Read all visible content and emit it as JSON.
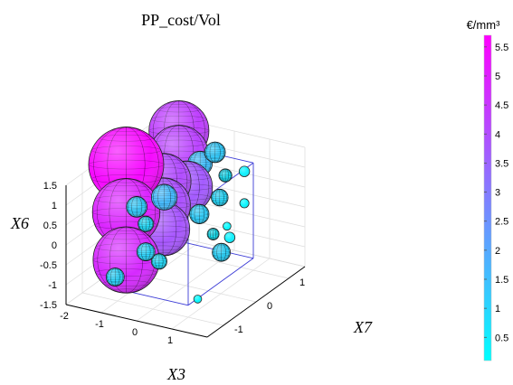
{
  "chart_data": {
    "type": "scatter",
    "subtype": "3d-bubble",
    "title": "PP_cost/Vol",
    "xlabel": "X3",
    "ylabel": "X7",
    "zlabel": "X6",
    "xlim": [
      -2,
      2
    ],
    "ylim": [
      -1.5,
      1.5
    ],
    "zlim": [
      -1.5,
      1.5
    ],
    "xticks": [
      "-2",
      "-1",
      "0",
      "1"
    ],
    "yticks": [
      "-1",
      "0",
      "1"
    ],
    "zticks": [
      "-1.5",
      "-1",
      "-0.5",
      "0",
      "0.5",
      "1",
      "1.5"
    ],
    "grid": true,
    "colorbar": {
      "label": "€/mm³",
      "min": 0.1,
      "max": 5.7,
      "ticks": [
        "0.5",
        "1",
        "1.5",
        "2",
        "2.5",
        "3",
        "3.5",
        "4",
        "4.5",
        "5",
        "5.5"
      ],
      "colors": [
        "#00ffff",
        "#ff00ff"
      ]
    },
    "points": [
      {
        "x": -1.68,
        "y": 0,
        "z": 1.2,
        "value": 5.5
      },
      {
        "x": -1.68,
        "y": 0,
        "z": 0,
        "value": 4.9
      },
      {
        "x": -1.68,
        "y": 0,
        "z": -1.2,
        "value": 4.8
      },
      {
        "x": -1.2,
        "y": 1.1,
        "z": 1.5,
        "value": 4.3
      },
      {
        "x": -1.2,
        "y": 1.1,
        "z": 0.9,
        "value": 4.2
      },
      {
        "x": -1.1,
        "y": 0.5,
        "z": 0.6,
        "value": 4.0
      },
      {
        "x": -1.1,
        "y": 0.5,
        "z": 0,
        "value": 3.9
      },
      {
        "x": -1.1,
        "y": 0.5,
        "z": -0.6,
        "value": 3.8
      },
      {
        "x": -0.9,
        "y": 1,
        "z": 0.2,
        "value": 3.7
      },
      {
        "x": -0.6,
        "y": 0,
        "z": 0.6,
        "value": 1.6
      },
      {
        "x": -0.6,
        "y": 1.1,
        "z": 0.8,
        "value": 1.5
      },
      {
        "x": -0.55,
        "y": -0.9,
        "z": 0.9,
        "value": 1.2
      },
      {
        "x": 0.1,
        "y": 0.8,
        "z": 1.4,
        "value": 1.2
      },
      {
        "x": 0.3,
        "y": 0.1,
        "z": 0.3,
        "value": 1.1
      },
      {
        "x": -0.2,
        "y": -1,
        "z": -0.1,
        "value": 1.0
      },
      {
        "x": -0.7,
        "y": -1.4,
        "z": -0.6,
        "value": 1.0
      },
      {
        "x": 1.2,
        "y": -0.2,
        "z": -0.3,
        "value": 1.0
      },
      {
        "x": 0.6,
        "y": 0.4,
        "z": 0.6,
        "value": 0.9
      },
      {
        "x": -0.2,
        "y": -1,
        "z": 0.6,
        "value": 0.8
      },
      {
        "x": -0.1,
        "y": -0.7,
        "z": -0.5,
        "value": 0.8
      },
      {
        "x": 0.3,
        "y": 0.9,
        "z": 0.8,
        "value": 0.6
      },
      {
        "x": 0.6,
        "y": 0.2,
        "z": -0.2,
        "value": 0.5
      },
      {
        "x": 0.7,
        "y": 0.6,
        "z": -0.5,
        "value": 0.4
      },
      {
        "x": 1.3,
        "y": 0.4,
        "z": 1.4,
        "value": 0.4
      },
      {
        "x": 1.3,
        "y": 0.4,
        "z": 0.6,
        "value": 0.3
      },
      {
        "x": 0.9,
        "y": 0.3,
        "z": 0.0,
        "value": 0.2
      },
      {
        "x": 0.9,
        "y": -0.6,
        "z": -1.3,
        "value": 0.2
      }
    ],
    "box": {
      "line_color": "#3b3bd6"
    }
  }
}
